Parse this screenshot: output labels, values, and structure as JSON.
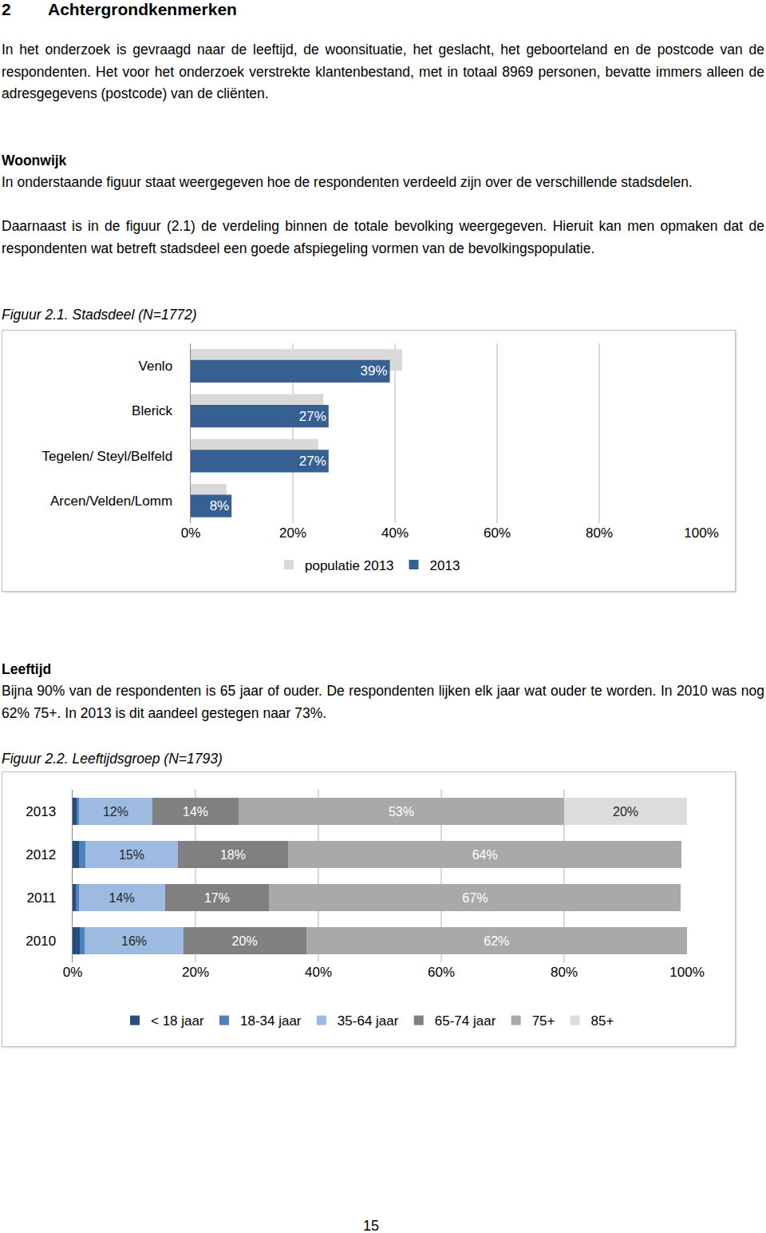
{
  "heading": {
    "number": "2",
    "title": "Achtergrondkenmerken"
  },
  "intro": "In het onderzoek is gevraagd naar de leeftijd, de woonsituatie, het geslacht, het geboorteland en de postcode van de respondenten. Het voor het onderzoek verstrekte klantenbestand, met in totaal 8969 personen, bevatte immers alleen de adresgegevens (postcode) van de cliënten.",
  "sections": [
    {
      "title": "Woonwijk",
      "paragraphs": [
        "In onderstaande figuur staat weergegeven hoe de respondenten verdeeld zijn over de verschillende stadsdelen.",
        "Daarnaast is in de figuur (2.1) de verdeling binnen de totale bevolking weergegeven. Hieruit kan men opmaken dat de respondenten wat betreft stadsdeel een goede afspiegeling vormen van de bevolkingspopulatie."
      ],
      "figure_caption": "Figuur 2.1. Stadsdeel (N=1772)"
    },
    {
      "title": "Leeftijd",
      "paragraphs": [
        "Bijna 90% van de respondenten is 65 jaar of ouder. De respondenten lijken elk jaar wat ouder te worden. In 2010 was nog 62% 75+. In 2013 is dit aandeel gestegen naar 73%."
      ],
      "figure_caption": "Figuur 2.2. Leeftijdsgroep (N=1793)"
    }
  ],
  "chart_data": [
    {
      "type": "bar",
      "orientation": "horizontal",
      "categories": [
        "Venlo",
        "Blerick",
        "Tegelen/ Steyl/Belfeld",
        "Arcen/Velden/Lomm"
      ],
      "series": [
        {
          "name": "populatie 2013",
          "color": "#d9d9d9",
          "values": [
            41.4,
            26,
            25,
            7
          ]
        },
        {
          "name": "2013",
          "color": "#366092",
          "values": [
            39,
            27,
            27,
            8
          ],
          "value_labels": [
            "39%",
            "27%",
            "27%",
            "8%"
          ]
        }
      ],
      "xlim": [
        0,
        100
      ],
      "xticks": [
        {
          "value": 0,
          "label": "0%"
        },
        {
          "value": 20,
          "label": "20%"
        },
        {
          "value": 40,
          "label": "40%"
        },
        {
          "value": 60,
          "label": "60%"
        },
        {
          "value": 80,
          "label": "80%"
        },
        {
          "value": 100,
          "label": "100%"
        }
      ],
      "grid": true,
      "legend": "bottom",
      "data_labels": true
    },
    {
      "type": "bar",
      "orientation": "horizontal",
      "stacked": true,
      "categories": [
        "2013",
        "2012",
        "2011",
        "2010"
      ],
      "series": [
        {
          "name": "< 18 jaar",
          "color": "#254f7f",
          "values": [
            0.6,
            1.1,
            0.5,
            1.2
          ]
        },
        {
          "name": "18-34 jaar",
          "color": "#4f81bd",
          "values": [
            0.4,
            1.0,
            0.5,
            0.8
          ]
        },
        {
          "name": "35-64 jaar",
          "color": "#9dbbe0",
          "values": [
            12,
            15,
            14,
            16
          ],
          "value_labels": [
            "12%",
            "15%",
            "14%",
            "16%"
          ]
        },
        {
          "name": "65-74 jaar",
          "color": "#808080",
          "values": [
            14,
            18,
            17,
            20
          ],
          "value_labels": [
            "14%",
            "18%",
            "17%",
            "20%"
          ]
        },
        {
          "name": "75+",
          "color": "#a9a9a9",
          "values": [
            53,
            64,
            67,
            62
          ],
          "value_labels": [
            "53%",
            "64%",
            "67%",
            "62%"
          ]
        },
        {
          "name": "85+",
          "color": "#dcdcdc",
          "values": [
            20,
            null,
            null,
            null
          ],
          "value_labels": [
            "20%",
            null,
            null,
            null
          ]
        }
      ],
      "xlim": [
        0,
        100
      ],
      "xticks": [
        {
          "value": 0,
          "label": "0%"
        },
        {
          "value": 20,
          "label": "20%"
        },
        {
          "value": 40,
          "label": "40%"
        },
        {
          "value": 60,
          "label": "60%"
        },
        {
          "value": 80,
          "label": "80%"
        },
        {
          "value": 100,
          "label": "100%"
        }
      ],
      "grid": true,
      "legend": "bottom",
      "data_labels": true
    }
  ],
  "page_number": "15"
}
